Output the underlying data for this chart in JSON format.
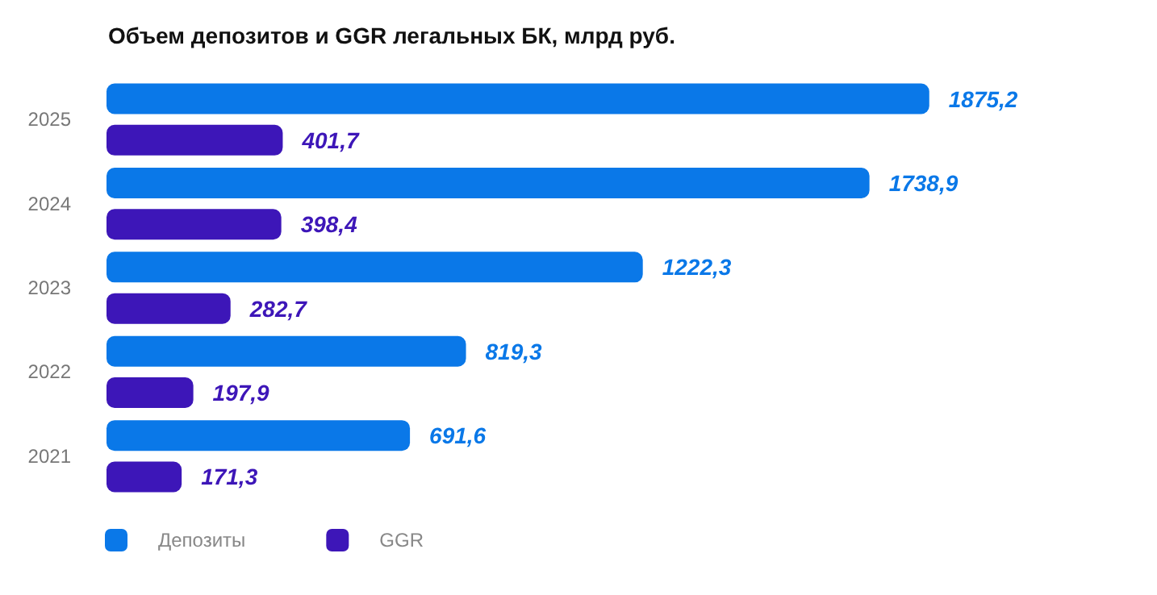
{
  "chart_data": {
    "type": "bar",
    "orientation": "horizontal",
    "title": "Объем депозитов и GGR легальных БК, млрд руб.",
    "categories": [
      "2025",
      "2024",
      "2023",
      "2022",
      "2021"
    ],
    "series": [
      {
        "name": "Депозиты",
        "color": "#0a78e8",
        "values": [
          1875.2,
          1738.9,
          1222.3,
          819.3,
          691.6
        ],
        "value_labels": [
          "1875,2",
          "1738,9",
          "1222,3",
          "819,3",
          "691,6"
        ]
      },
      {
        "name": "GGR",
        "color": "#3d16b8",
        "values": [
          401.7,
          398.4,
          282.7,
          197.9,
          171.3
        ],
        "value_labels": [
          "401,7",
          "398,4",
          "282,7",
          "197,9",
          "171,3"
        ]
      }
    ],
    "legend": "bottom left"
  }
}
